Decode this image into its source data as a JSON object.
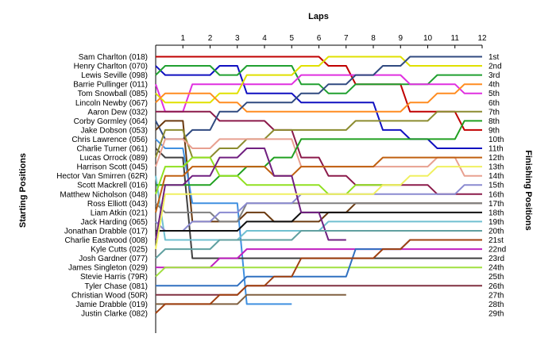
{
  "chart_data": {
    "type": "line",
    "title": "Laps",
    "xlabel": "Laps",
    "ylabel_left": "Starting Positions",
    "ylabel_right": "Finishing Positions",
    "laps": [
      1,
      2,
      3,
      4,
      5,
      6,
      7,
      8,
      9,
      10,
      11,
      12
    ],
    "finishing_labels": [
      "1st",
      "2nd",
      "3rd",
      "4th",
      "5th",
      "6th",
      "7th",
      "8th",
      "9th",
      "10th",
      "11th",
      "12th",
      "13th",
      "14th",
      "15th",
      "16th",
      "17th",
      "18th",
      "19th",
      "20th",
      "21st",
      "22nd",
      "23rd",
      "24th",
      "25th",
      "26th",
      "27th",
      "28th",
      "29th"
    ],
    "grid": false,
    "series": [
      {
        "name": "Sam Charlton (018)",
        "color": "#c00000",
        "positions": [
          1,
          1,
          1,
          1,
          1,
          1,
          1,
          2,
          4,
          4,
          7,
          7,
          9
        ]
      },
      {
        "name": "Henry Charlton (070)",
        "color": "#1010c0",
        "positions": [
          2,
          3,
          3,
          2,
          5,
          5,
          6,
          6,
          6,
          9,
          10,
          11,
          11
        ]
      },
      {
        "name": "Lewis Seville (098)",
        "color": "#20a030",
        "positions": [
          3,
          2,
          2,
          3,
          2,
          2,
          4,
          5,
          4,
          4,
          4,
          3,
          3
        ]
      },
      {
        "name": "Barrie Pullinger (011)",
        "color": "#e030e0",
        "positions": [
          4,
          7,
          4,
          4,
          4,
          4,
          3,
          3,
          3,
          3,
          4,
          4,
          5
        ]
      },
      {
        "name": "Tom Snowball (085)",
        "color": "#e0e000",
        "positions": [
          5,
          6,
          6,
          5,
          3,
          3,
          2,
          1,
          1,
          1,
          2,
          2,
          2
        ]
      },
      {
        "name": "Lincoln Newby (067)",
        "color": "#ff8c20",
        "positions": [
          6,
          5,
          5,
          6,
          7,
          7,
          7,
          7,
          7,
          7,
          6,
          5,
          4
        ]
      },
      {
        "name": "Aaron Dew (032)",
        "color": "#8b1a4a",
        "positions": [
          7,
          7,
          7,
          8,
          8,
          9,
          12,
          14,
          15,
          15,
          15,
          16,
          16
        ]
      },
      {
        "name": "Corby Gormley (064)",
        "color": "#304a80",
        "positions": [
          8,
          10,
          9,
          7,
          6,
          6,
          5,
          4,
          3,
          2,
          1,
          1,
          1
        ]
      },
      {
        "name": "Jake Dobson (053)",
        "color": "#6b3a10",
        "positions": [
          9,
          8,
          19,
          19,
          18,
          19,
          19,
          18,
          17,
          17,
          17,
          17,
          17
        ]
      },
      {
        "name": "Chris Lawrence (056)",
        "color": "#4090e0",
        "positions": [
          10,
          11,
          17,
          17,
          28,
          28
        ]
      },
      {
        "name": "Charlie Turner (061)",
        "color": "#404040",
        "positions": [
          11,
          12,
          23,
          23,
          23,
          23,
          23,
          23,
          23,
          23,
          23,
          23,
          23
        ]
      },
      {
        "name": "Lucas Orrock (089)",
        "color": "#8c8c30",
        "positions": [
          12,
          9,
          12,
          11,
          10,
          9,
          9,
          9,
          8,
          8,
          8,
          7,
          7
        ]
      },
      {
        "name": "Harrison Scott (045)",
        "color": "#e8a090",
        "positions": [
          13,
          10,
          11,
          10,
          10,
          10,
          13,
          13,
          13,
          13,
          13,
          12,
          14
        ]
      },
      {
        "name": "Hector Van Smirren (62R)",
        "color": "#70c0d0",
        "positions": [
          14,
          21,
          21,
          21,
          20,
          20,
          20,
          19,
          19,
          19,
          19,
          19,
          19
        ]
      },
      {
        "name": "Scott Mackrell (016)",
        "color": "#20a020",
        "positions": [
          15,
          15,
          15,
          14,
          13,
          12,
          10,
          10,
          10,
          10,
          10,
          10,
          8
        ]
      },
      {
        "name": "Matthew Nicholson (048)",
        "color": "#90e020",
        "positions": [
          16,
          13,
          12,
          14,
          15,
          15,
          15,
          16,
          15,
          15
        ]
      },
      {
        "name": "Ross Elliott (043)",
        "color": "#808080",
        "positions": [
          17,
          18,
          18,
          19,
          17,
          17,
          17,
          17,
          17,
          17,
          17,
          17,
          17
        ]
      },
      {
        "name": "Liam Atkin (021)",
        "color": "#c06010",
        "positions": [
          18,
          14,
          13,
          13,
          13,
          14,
          13,
          13,
          13,
          12,
          12,
          12,
          12
        ]
      },
      {
        "name": "Jack Harding (065)",
        "color": "#8a8ad0",
        "positions": [
          19,
          20,
          19,
          18,
          17,
          17,
          16,
          16,
          16,
          16,
          16,
          16,
          15
        ]
      },
      {
        "name": "Jonathan Drabble (017)",
        "color": "#101010",
        "positions": [
          20,
          20,
          20,
          20,
          19,
          19,
          18,
          18,
          18,
          18,
          18,
          18,
          18
        ]
      },
      {
        "name": "Charlie Eastwood (008)",
        "color": "#702080",
        "positions": [
          21,
          15,
          14,
          12,
          11,
          14,
          18,
          21
        ]
      },
      {
        "name": "Kyle Cutts (025)",
        "color": "#f0f060",
        "positions": [
          22,
          16,
          16,
          16,
          16,
          16,
          16,
          16,
          16,
          15,
          14,
          13,
          13
        ]
      },
      {
        "name": "Josh Gardner (077)",
        "color": "#60a0a0",
        "positions": [
          23,
          22,
          22,
          21,
          21,
          21,
          20,
          20,
          20,
          20,
          20,
          20,
          20
        ]
      },
      {
        "name": "James Singleton (029)",
        "color": "#c020c0",
        "positions": [
          24,
          24,
          24,
          23,
          22,
          22,
          22,
          22,
          22,
          22,
          22,
          22,
          22
        ]
      },
      {
        "name": "Stevie Harris (79R)",
        "color": "#a0e040",
        "positions": [
          25,
          24,
          24,
          24,
          24,
          24,
          24,
          24,
          24,
          24,
          24,
          24,
          24
        ]
      },
      {
        "name": "Tyler Chase (081)",
        "color": "#3070c0",
        "positions": [
          26,
          26,
          26,
          26,
          25,
          25,
          25,
          25,
          22,
          22,
          21,
          21,
          21
        ]
      },
      {
        "name": "Christian Wood (50R)",
        "color": "#803040",
        "positions": [
          27,
          27,
          27,
          27,
          26,
          26,
          26,
          26,
          26,
          26,
          26,
          26,
          26
        ]
      },
      {
        "name": "Jamie Drabble (019)",
        "color": "#806040",
        "positions": [
          28,
          28,
          28,
          28,
          27,
          27,
          27,
          27
        ]
      },
      {
        "name": "Justin Clarke (082)",
        "color": "#a04010",
        "positions": [
          29,
          28,
          28,
          27,
          26,
          25,
          23,
          23,
          23,
          22,
          21,
          21,
          21
        ]
      }
    ]
  }
}
